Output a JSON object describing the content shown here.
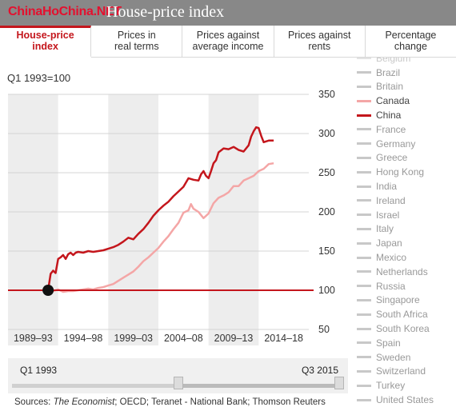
{
  "header": {
    "watermark": "ChinaHoChina.NET",
    "title": "House-price index"
  },
  "tabs": [
    {
      "line1": "House-price",
      "line2": "index",
      "active": true
    },
    {
      "line1": "Prices in",
      "line2": "real terms",
      "active": false
    },
    {
      "line1": "Prices against",
      "line2": "average income",
      "active": false
    },
    {
      "line1": "Prices against",
      "line2": "rents",
      "active": false
    },
    {
      "line1": "Percentage",
      "line2": "change",
      "active": false
    }
  ],
  "base_label": "Q1 1993=100",
  "chart_data": {
    "type": "line",
    "title": "",
    "ylim": [
      50,
      350
    ],
    "yticks": [
      50,
      100,
      150,
      200,
      250,
      300,
      350
    ],
    "x_periods": [
      "1989–93",
      "1994–98",
      "1999–03",
      "2004–08",
      "2009–13",
      "2014–18"
    ],
    "shaded_periods": [
      0,
      2,
      4
    ],
    "baseline": 100,
    "baseline_color": "#c4161c",
    "start_marker": {
      "year": 1993.0,
      "value": 100
    },
    "series": [
      {
        "name": "China",
        "color": "#c4161c",
        "points": [
          [
            1993.0,
            100
          ],
          [
            1993.25,
            121
          ],
          [
            1993.5,
            125
          ],
          [
            1993.75,
            122
          ],
          [
            1994.0,
            140
          ],
          [
            1994.25,
            142
          ],
          [
            1994.5,
            145
          ],
          [
            1994.75,
            140
          ],
          [
            1995.0,
            146
          ],
          [
            1995.25,
            148
          ],
          [
            1995.5,
            145
          ],
          [
            1995.75,
            148
          ],
          [
            1996.0,
            149
          ],
          [
            1996.5,
            148
          ],
          [
            1997.0,
            150
          ],
          [
            1997.5,
            149
          ],
          [
            1998.0,
            150
          ],
          [
            1998.5,
            151
          ],
          [
            1999.0,
            153
          ],
          [
            1999.5,
            155
          ],
          [
            2000.0,
            158
          ],
          [
            2000.5,
            162
          ],
          [
            2001.0,
            167
          ],
          [
            2001.5,
            165
          ],
          [
            2002.0,
            172
          ],
          [
            2002.5,
            178
          ],
          [
            2003.0,
            186
          ],
          [
            2003.5,
            195
          ],
          [
            2004.0,
            202
          ],
          [
            2004.5,
            208
          ],
          [
            2005.0,
            213
          ],
          [
            2005.5,
            220
          ],
          [
            2006.0,
            226
          ],
          [
            2006.5,
            232
          ],
          [
            2007.0,
            243
          ],
          [
            2007.5,
            241
          ],
          [
            2008.0,
            240
          ],
          [
            2008.25,
            248
          ],
          [
            2008.5,
            252
          ],
          [
            2008.75,
            246
          ],
          [
            2009.0,
            243
          ],
          [
            2009.25,
            252
          ],
          [
            2009.5,
            262
          ],
          [
            2009.75,
            266
          ],
          [
            2010.0,
            276
          ],
          [
            2010.5,
            281
          ],
          [
            2011.0,
            280
          ],
          [
            2011.5,
            283
          ],
          [
            2012.0,
            279
          ],
          [
            2012.5,
            277
          ],
          [
            2013.0,
            285
          ],
          [
            2013.25,
            296
          ],
          [
            2013.5,
            303
          ],
          [
            2013.75,
            308
          ],
          [
            2014.0,
            307
          ],
          [
            2014.25,
            297
          ],
          [
            2014.5,
            289
          ],
          [
            2014.75,
            290
          ],
          [
            2015.0,
            291
          ],
          [
            2015.25,
            291
          ],
          [
            2015.5,
            291
          ]
        ]
      },
      {
        "name": "Canada",
        "color": "#f4a6a6",
        "points": [
          [
            1993.0,
            100
          ],
          [
            1993.5,
            99
          ],
          [
            1994.0,
            101
          ],
          [
            1994.5,
            98
          ],
          [
            1995.0,
            99
          ],
          [
            1995.5,
            99
          ],
          [
            1996.0,
            100
          ],
          [
            1996.5,
            101
          ],
          [
            1997.0,
            102
          ],
          [
            1997.5,
            101
          ],
          [
            1998.0,
            103
          ],
          [
            1998.5,
            104
          ],
          [
            1999.0,
            106
          ],
          [
            1999.5,
            108
          ],
          [
            2000.0,
            112
          ],
          [
            2000.5,
            116
          ],
          [
            2001.0,
            120
          ],
          [
            2001.5,
            124
          ],
          [
            2002.0,
            130
          ],
          [
            2002.5,
            137
          ],
          [
            2003.0,
            142
          ],
          [
            2003.5,
            148
          ],
          [
            2004.0,
            154
          ],
          [
            2004.5,
            162
          ],
          [
            2005.0,
            169
          ],
          [
            2005.5,
            178
          ],
          [
            2006.0,
            186
          ],
          [
            2006.5,
            199
          ],
          [
            2007.0,
            202
          ],
          [
            2007.25,
            210
          ],
          [
            2007.5,
            204
          ],
          [
            2008.0,
            200
          ],
          [
            2008.5,
            192
          ],
          [
            2009.0,
            198
          ],
          [
            2009.5,
            211
          ],
          [
            2010.0,
            218
          ],
          [
            2010.5,
            221
          ],
          [
            2011.0,
            225
          ],
          [
            2011.5,
            233
          ],
          [
            2012.0,
            233
          ],
          [
            2012.5,
            240
          ],
          [
            2013.0,
            243
          ],
          [
            2013.5,
            246
          ],
          [
            2014.0,
            252
          ],
          [
            2014.5,
            255
          ],
          [
            2015.0,
            261
          ],
          [
            2015.5,
            262
          ]
        ]
      }
    ]
  },
  "slider": {
    "start_label": "Q1 1993",
    "end_label": "Q3 2015",
    "start_fraction": 0.5,
    "end_fraction": 1.0
  },
  "sources": {
    "prefix": "Sources: ",
    "italic": "The Economist",
    "rest": "; OECD; Teranet - National Bank; Thomson Reuters"
  },
  "legend": {
    "countries": [
      {
        "name": "Belgium",
        "state": "faded"
      },
      {
        "name": "Brazil",
        "state": "normal"
      },
      {
        "name": "Britain",
        "state": "normal"
      },
      {
        "name": "Canada",
        "state": "hl-light"
      },
      {
        "name": "China",
        "state": "hl-dark"
      },
      {
        "name": "France",
        "state": "normal"
      },
      {
        "name": "Germany",
        "state": "normal"
      },
      {
        "name": "Greece",
        "state": "normal"
      },
      {
        "name": "Hong Kong",
        "state": "normal"
      },
      {
        "name": "India",
        "state": "normal"
      },
      {
        "name": "Ireland",
        "state": "normal"
      },
      {
        "name": "Israel",
        "state": "normal"
      },
      {
        "name": "Italy",
        "state": "normal"
      },
      {
        "name": "Japan",
        "state": "normal"
      },
      {
        "name": "Mexico",
        "state": "normal"
      },
      {
        "name": "Netherlands",
        "state": "normal"
      },
      {
        "name": "Russia",
        "state": "normal"
      },
      {
        "name": "Singapore",
        "state": "normal"
      },
      {
        "name": "South Africa",
        "state": "normal"
      },
      {
        "name": "South Korea",
        "state": "normal"
      },
      {
        "name": "Spain",
        "state": "normal"
      },
      {
        "name": "Sweden",
        "state": "normal"
      },
      {
        "name": "Switzerland",
        "state": "normal"
      },
      {
        "name": "Turkey",
        "state": "normal"
      },
      {
        "name": "United States",
        "state": "normal"
      }
    ]
  }
}
